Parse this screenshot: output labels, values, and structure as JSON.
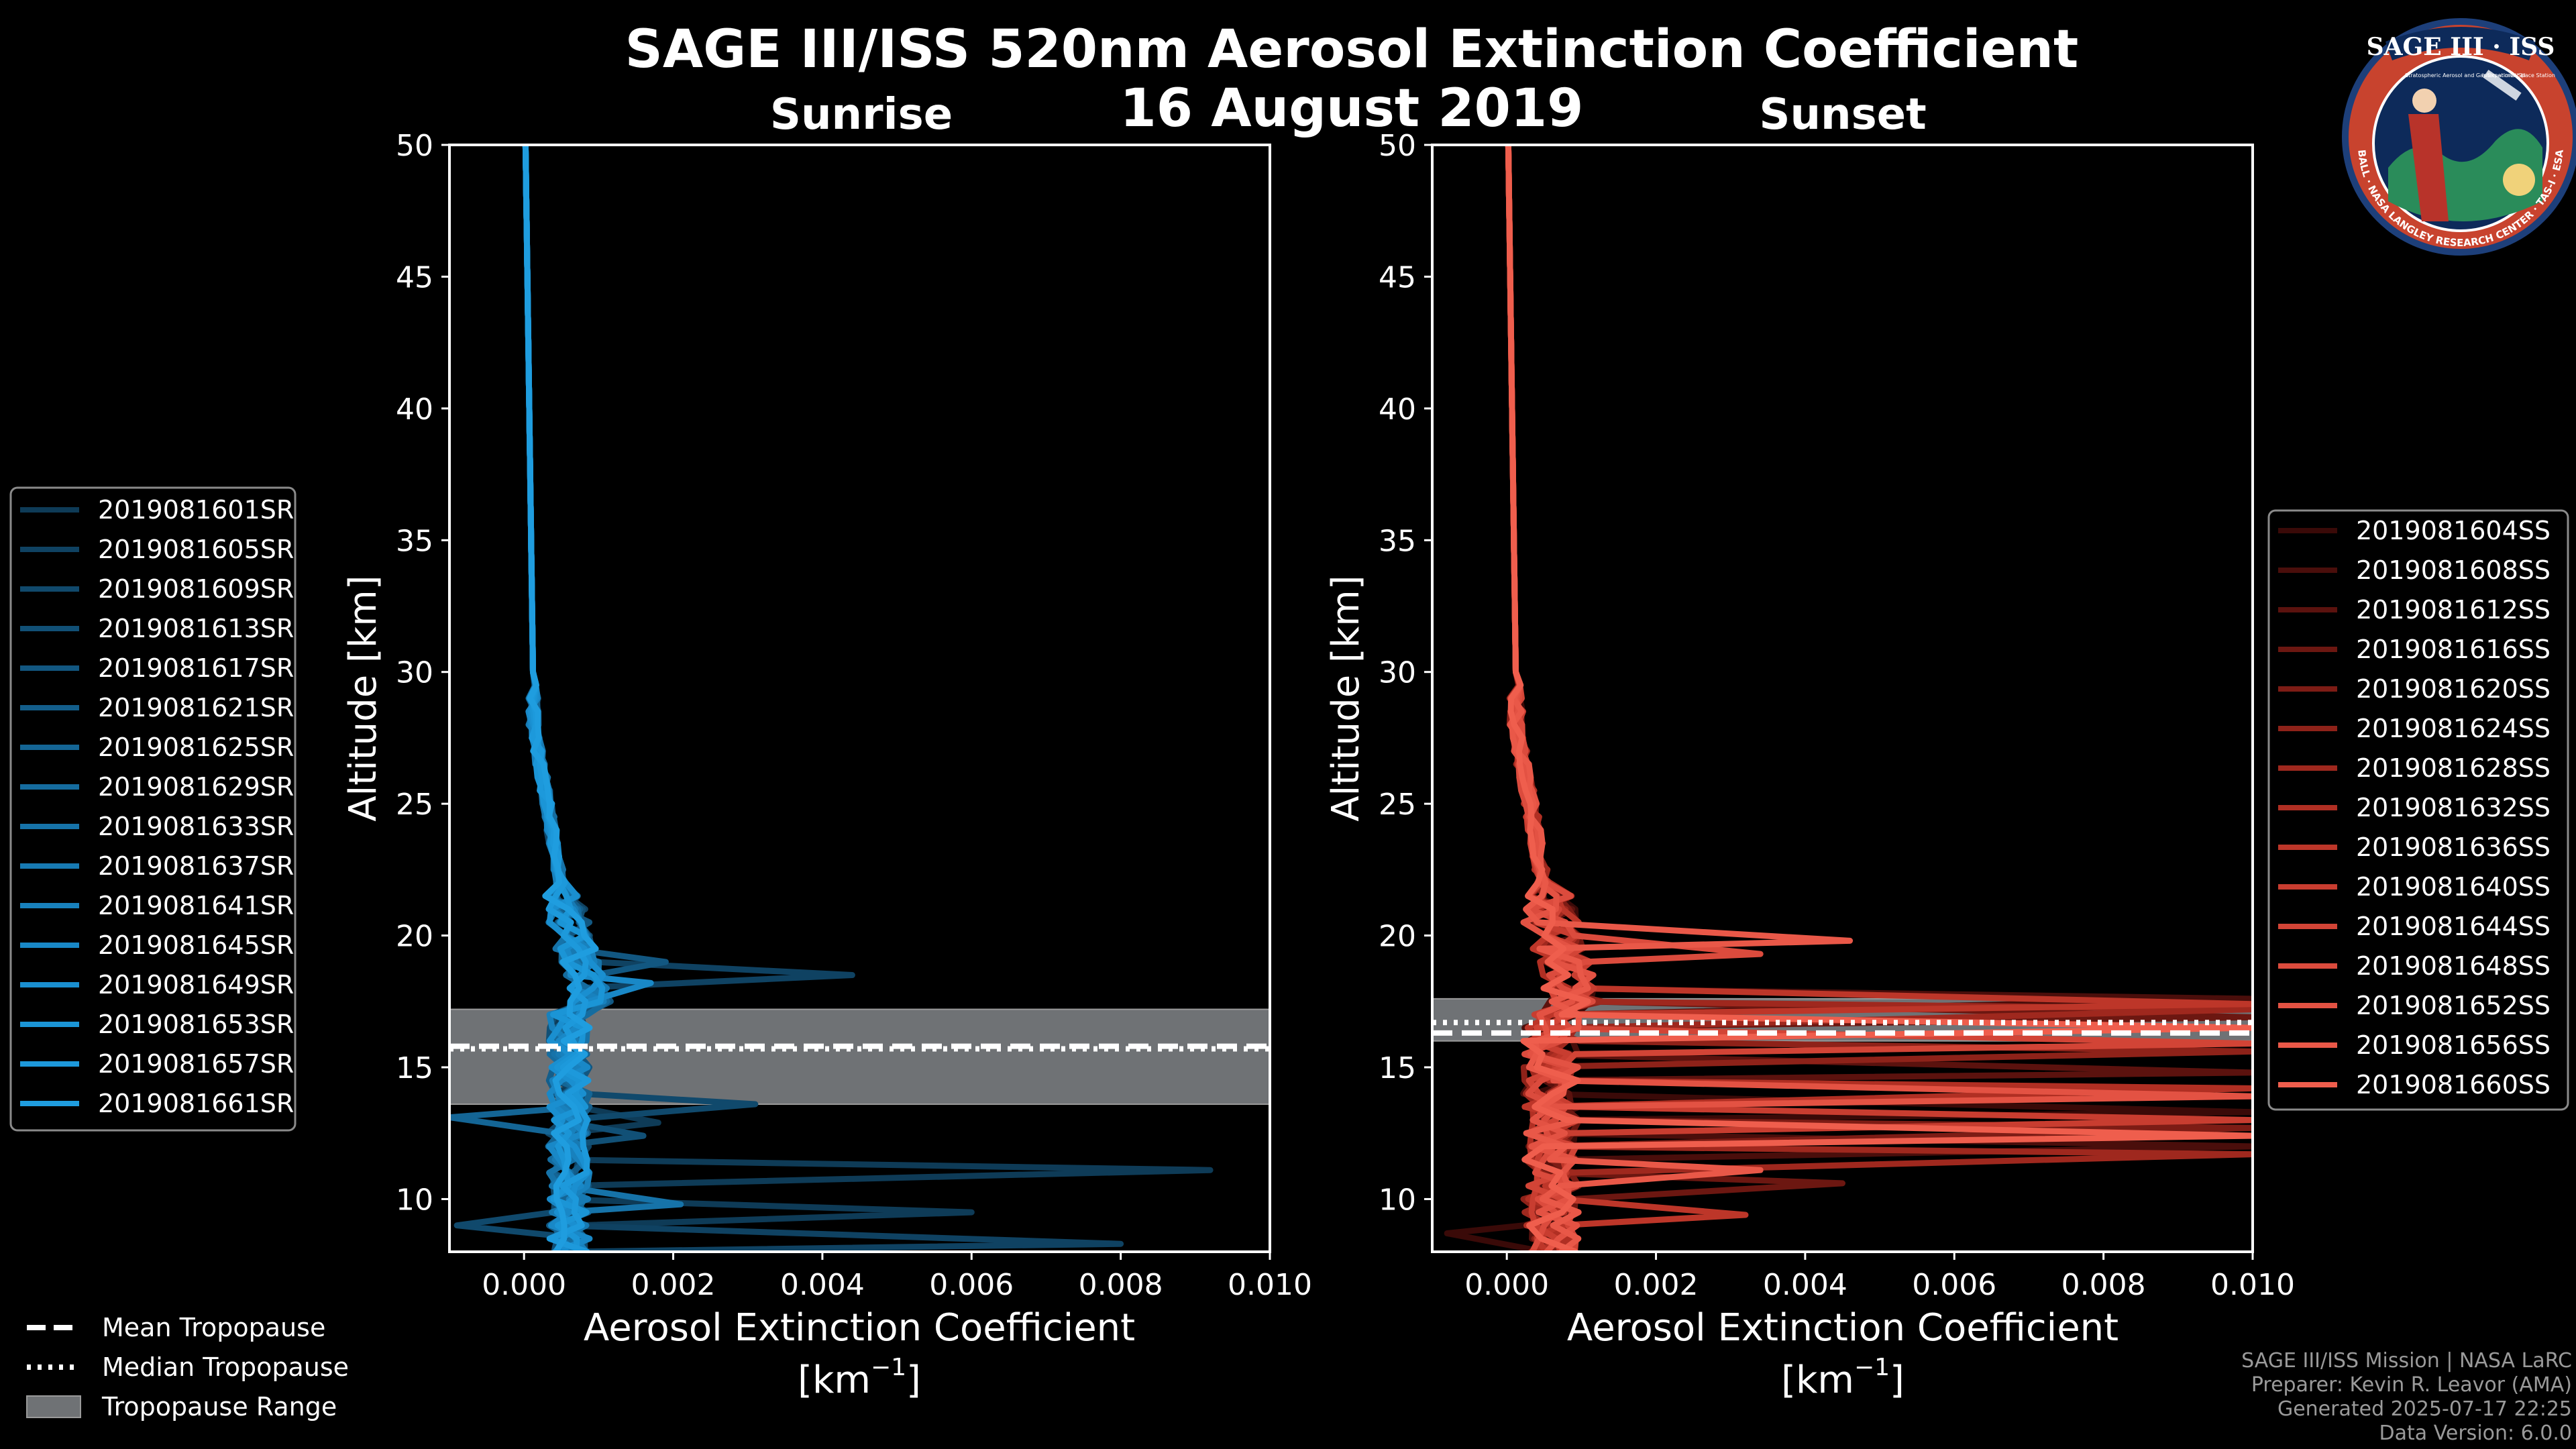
{
  "title": "SAGE III/ISS 520nm Aerosol Extinction Coefficient",
  "date": "16 August 2019",
  "logo": {
    "text": "SAGE III · ISS",
    "ring_text": "BALL · NASA LANGLEY RESEARCH CENTER · TAS-I · ESA",
    "inner_text_left": "Stratospheric Aerosol and Gas Experiment III",
    "inner_text_right": "International Space Station"
  },
  "credits": [
    "SAGE III/ISS Mission | NASA LaRC",
    "Preparer: Kevin R. Leavor (AMA)",
    "Generated 2025-07-17 22:25",
    "Data Version: 6.0.0"
  ],
  "tropopause_legend": [
    {
      "label": "Mean Tropopause",
      "style": "dashed"
    },
    {
      "label": "Median Tropopause",
      "style": "dotted"
    },
    {
      "label": "Tropopause Range",
      "style": "patch"
    }
  ],
  "colors": {
    "sunrise": "#1f9ad8",
    "sunset": "#ef5a4a",
    "range_fill": "#6f7275",
    "axes": "#ffffff"
  },
  "chart_data": [
    {
      "type": "line",
      "subtitle": "Sunrise",
      "xlabel": "Aerosol Extinction Coefficient",
      "xunit_base": "[km",
      "xunit_exp": "−1",
      "xunit_end": "]",
      "ylabel": "Altitude [km]",
      "xlim": [
        -0.001,
        0.01
      ],
      "ylim": [
        8,
        50
      ],
      "xticks": [
        0.0,
        0.002,
        0.004,
        0.006,
        0.008,
        0.01
      ],
      "xtick_labels": [
        "0.000",
        "0.002",
        "0.004",
        "0.006",
        "0.008",
        "0.010"
      ],
      "yticks": [
        10,
        15,
        20,
        25,
        30,
        35,
        40,
        45,
        50
      ],
      "ytick_labels": [
        "10",
        "15",
        "20",
        "25",
        "30",
        "35",
        "40",
        "45",
        "50"
      ],
      "tropopause": {
        "mean": 15.8,
        "median": 15.7,
        "range": [
          13.6,
          17.2
        ]
      },
      "series": [
        {
          "name": "2019081601SR",
          "color": "#0e3b57",
          "spike": [
            [
              11.1,
              0.0092
            ],
            [
              9.5,
              0.006
            ],
            [
              12.9,
              0.0018
            ]
          ]
        },
        {
          "name": "2019081605SR",
          "color": "#0f4262",
          "spike": [
            [
              18.5,
              0.0044
            ],
            [
              8.3,
              0.008
            ]
          ]
        },
        {
          "name": "2019081609SR",
          "color": "#10496c",
          "spike": [
            [
              13.6,
              0.0031
            ],
            [
              9.0,
              -0.0009
            ]
          ]
        },
        {
          "name": "2019081613SR",
          "color": "#115076",
          "spike": [
            [
              12.4,
              0.0016
            ]
          ]
        },
        {
          "name": "2019081617SR",
          "color": "#125781",
          "spike": [
            [
              19.0,
              0.0019
            ]
          ]
        },
        {
          "name": "2019081621SR",
          "color": "#135e8b",
          "spike": []
        },
        {
          "name": "2019081625SR",
          "color": "#146595",
          "spike": [
            [
              13.1,
              -0.001
            ]
          ]
        },
        {
          "name": "2019081629SR",
          "color": "#156c9f",
          "spike": []
        },
        {
          "name": "2019081633SR",
          "color": "#1673a9",
          "spike": [
            [
              9.8,
              0.0021
            ]
          ]
        },
        {
          "name": "2019081637SR",
          "color": "#177ab3",
          "spike": []
        },
        {
          "name": "2019081641SR",
          "color": "#1881bd",
          "spike": []
        },
        {
          "name": "2019081645SR",
          "color": "#1988c7",
          "spike": [
            [
              18.2,
              0.0017
            ]
          ]
        },
        {
          "name": "2019081649SR",
          "color": "#1a8fd0",
          "spike": []
        },
        {
          "name": "2019081653SR",
          "color": "#1b95d6",
          "spike": []
        },
        {
          "name": "2019081657SR",
          "color": "#1d99db",
          "spike": []
        },
        {
          "name": "2019081661SR",
          "color": "#1f9ddf",
          "spike": []
        }
      ]
    },
    {
      "type": "line",
      "subtitle": "Sunset",
      "xlabel": "Aerosol Extinction Coefficient",
      "xunit_base": "[km",
      "xunit_exp": "−1",
      "xunit_end": "]",
      "ylabel": "Altitude [km]",
      "xlim": [
        -0.001,
        0.01
      ],
      "ylim": [
        8,
        50
      ],
      "xticks": [
        0.0,
        0.002,
        0.004,
        0.006,
        0.008,
        0.01
      ],
      "xtick_labels": [
        "0.000",
        "0.002",
        "0.004",
        "0.006",
        "0.008",
        "0.010"
      ],
      "yticks": [
        10,
        15,
        20,
        25,
        30,
        35,
        40,
        45,
        50
      ],
      "ytick_labels": [
        "10",
        "15",
        "20",
        "25",
        "30",
        "35",
        "40",
        "45",
        "50"
      ],
      "tropopause": {
        "mean": 16.3,
        "median": 16.7,
        "range": [
          16.0,
          17.6
        ]
      },
      "series": [
        {
          "name": "2019081604SS",
          "color": "#3a0a08",
          "spike": [
            [
              8.7,
              -0.0008
            ],
            [
              13.3,
              0.01
            ]
          ]
        },
        {
          "name": "2019081608SS",
          "color": "#4a0e0b",
          "spike": [
            [
              17.6,
              0.01
            ],
            [
              12.0,
              0.01
            ]
          ]
        },
        {
          "name": "2019081612SS",
          "color": "#5b120e",
          "spike": [
            [
              14.8,
              0.01
            ]
          ]
        },
        {
          "name": "2019081616SS",
          "color": "#6c1711",
          "spike": [
            [
              16.9,
              0.01
            ],
            [
              10.6,
              0.0045
            ]
          ]
        },
        {
          "name": "2019081620SS",
          "color": "#7d1c15",
          "spike": [
            [
              12.7,
              0.01
            ]
          ]
        },
        {
          "name": "2019081624SS",
          "color": "#8e2219",
          "spike": [
            [
              15.6,
              0.01
            ]
          ]
        },
        {
          "name": "2019081628SS",
          "color": "#9f281e",
          "spike": [
            [
              11.7,
              0.01
            ],
            [
              17.2,
              0.01
            ]
          ]
        },
        {
          "name": "2019081632SS",
          "color": "#b02f23",
          "spike": [
            [
              14.2,
              0.01
            ]
          ]
        },
        {
          "name": "2019081636SS",
          "color": "#bd3629",
          "spike": [
            [
              9.4,
              0.0032
            ],
            [
              17.4,
              0.01
            ]
          ]
        },
        {
          "name": "2019081640SS",
          "color": "#c83d30",
          "spike": [
            [
              13.0,
              0.01
            ]
          ]
        },
        {
          "name": "2019081644SS",
          "color": "#d24436",
          "spike": [
            [
              15.9,
              0.01
            ]
          ]
        },
        {
          "name": "2019081648SS",
          "color": "#db4b3d",
          "spike": [
            [
              19.3,
              0.0034
            ]
          ]
        },
        {
          "name": "2019081652SS",
          "color": "#e35243",
          "spike": [
            [
              13.9,
              0.01
            ]
          ]
        },
        {
          "name": "2019081656SS",
          "color": "#e95848",
          "spike": [
            [
              19.8,
              0.0046
            ],
            [
              11.1,
              0.0034
            ]
          ]
        },
        {
          "name": "2019081660SS",
          "color": "#ef5e4d",
          "spike": [
            [
              16.5,
              0.01
            ],
            [
              12.4,
              0.01
            ]
          ]
        }
      ]
    }
  ]
}
